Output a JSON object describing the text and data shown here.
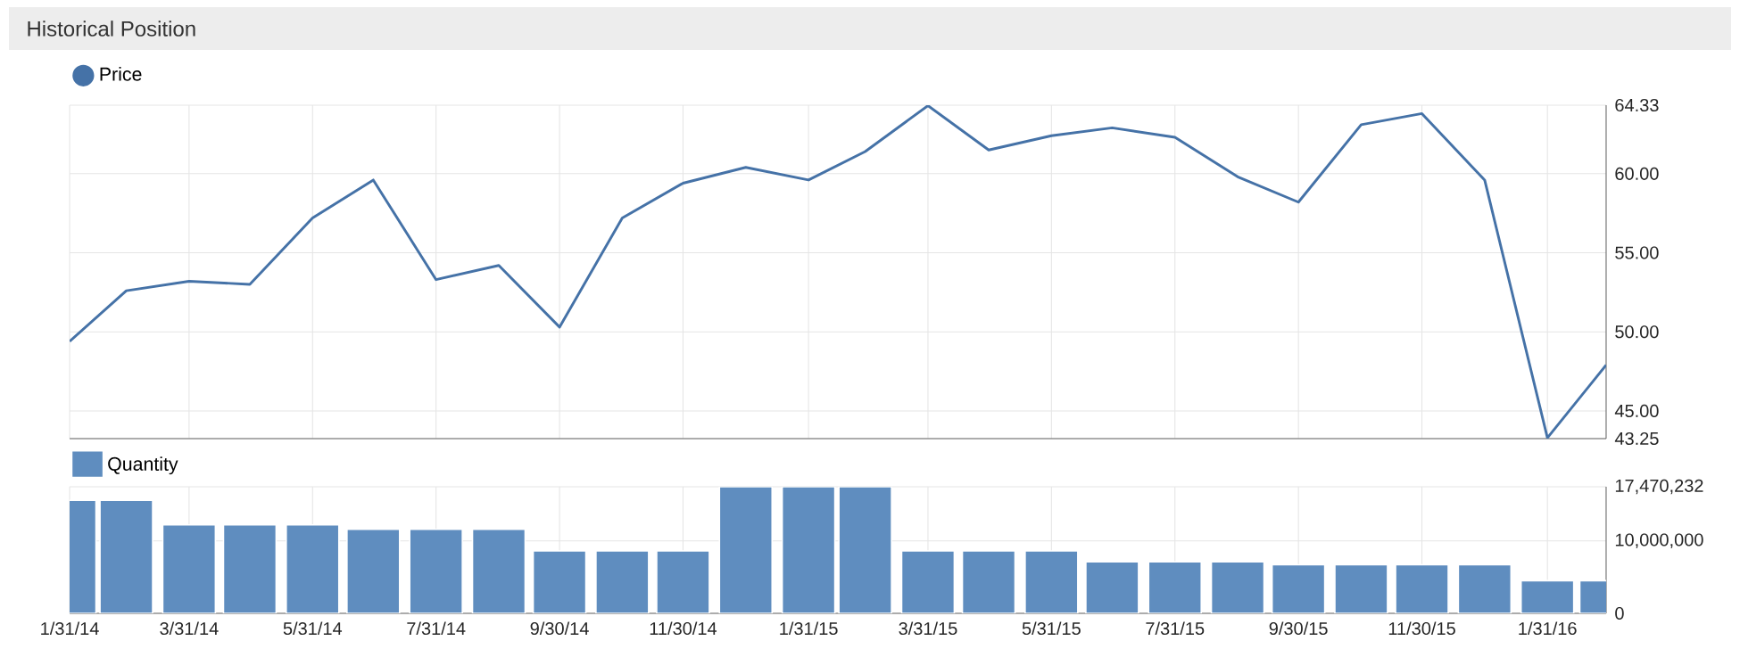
{
  "chart_data": [
    {
      "type": "line",
      "title": "Historical Position",
      "x": [
        "2014-01-31",
        "2014-02-28",
        "2014-03-31",
        "2014-04-30",
        "2014-05-31",
        "2014-06-30",
        "2014-07-31",
        "2014-08-31",
        "2014-09-30",
        "2014-10-31",
        "2014-11-30",
        "2014-12-31",
        "2015-01-31",
        "2015-02-28",
        "2015-03-31",
        "2015-04-30",
        "2015-05-31",
        "2015-06-30",
        "2015-07-31",
        "2015-08-31",
        "2015-09-30",
        "2015-10-31",
        "2015-11-30",
        "2015-12-31",
        "2016-01-31",
        "2016-02-29"
      ],
      "series": [
        {
          "name": "Price",
          "color": "#4572a7",
          "values": [
            49.4,
            52.6,
            53.2,
            53.0,
            57.2,
            59.6,
            53.3,
            54.2,
            50.3,
            57.2,
            59.4,
            60.4,
            59.6,
            61.4,
            64.3,
            61.5,
            62.4,
            62.9,
            62.3,
            59.8,
            58.2,
            63.1,
            63.8,
            59.6,
            43.3,
            47.9
          ]
        }
      ],
      "xlim": [
        "2014-01-31",
        "2016-02-29"
      ],
      "xticks": [
        {
          "value": "2014-01-31",
          "label": null
        },
        {
          "value": "2014-03-31",
          "label": null
        },
        {
          "value": "2014-05-31",
          "label": null
        },
        {
          "value": "2014-07-31",
          "label": null
        },
        {
          "value": "2014-09-30",
          "label": null
        },
        {
          "value": "2014-11-30",
          "label": null
        },
        {
          "value": "2015-01-31",
          "label": null
        },
        {
          "value": "2015-03-31",
          "label": null
        },
        {
          "value": "2015-05-31",
          "label": null
        },
        {
          "value": "2015-07-31",
          "label": null
        },
        {
          "value": "2015-09-30",
          "label": null
        },
        {
          "value": "2015-11-30",
          "label": null
        },
        {
          "value": "2016-01-31",
          "label": null
        }
      ],
      "ylim": [
        43.25,
        64.33
      ],
      "yticks": [
        43.25,
        {
          "value": 45,
          "label": "45.00"
        },
        {
          "value": 50,
          "label": "50.00"
        },
        {
          "value": 55,
          "label": "55.00"
        },
        {
          "value": 60,
          "label": "60.00"
        },
        64.33
      ],
      "grid": true,
      "legend": "top left",
      "tick_labels": "y"
    },
    {
      "type": "bar",
      "x": [
        "2014-01-31",
        "2014-02-28",
        "2014-03-31",
        "2014-04-30",
        "2014-05-31",
        "2014-06-30",
        "2014-07-31",
        "2014-08-31",
        "2014-09-30",
        "2014-10-31",
        "2014-11-30",
        "2014-12-31",
        "2015-01-31",
        "2015-02-28",
        "2015-03-31",
        "2015-04-30",
        "2015-05-31",
        "2015-06-30",
        "2015-07-31",
        "2015-08-31",
        "2015-09-30",
        "2015-10-31",
        "2015-11-30",
        "2015-12-31",
        "2016-01-31",
        "2016-02-29"
      ],
      "series": [
        {
          "name": "Quantity",
          "color": "#5f8dbf",
          "values": [
            15600000,
            15600000,
            12200000,
            12200000,
            12200000,
            11600000,
            11600000,
            11600000,
            8600000,
            8600000,
            8600000,
            17470232,
            17470232,
            17470232,
            8600000,
            8600000,
            8600000,
            7100000,
            7100000,
            7100000,
            6700000,
            6700000,
            6700000,
            6700000,
            4500000,
            4500000
          ]
        }
      ],
      "xlim": [
        "2014-01-31",
        "2016-02-29"
      ],
      "xticks": [
        {
          "value": "2014-01-31",
          "label": "1/31/14"
        },
        {
          "value": "2014-03-31",
          "label": "3/31/14"
        },
        {
          "value": "2014-05-31",
          "label": "5/31/14"
        },
        {
          "value": "2014-07-31",
          "label": "7/31/14"
        },
        {
          "value": "2014-09-30",
          "label": "9/30/14"
        },
        {
          "value": "2014-11-30",
          "label": "11/30/14"
        },
        {
          "value": "2015-01-31",
          "label": "1/31/15"
        },
        {
          "value": "2015-03-31",
          "label": "3/31/15"
        },
        {
          "value": "2015-05-31",
          "label": "5/31/15"
        },
        {
          "value": "2015-07-31",
          "label": "7/31/15"
        },
        {
          "value": "2015-09-30",
          "label": "9/30/15"
        },
        {
          "value": "2015-11-30",
          "label": "11/30/15"
        },
        {
          "value": "2016-01-31",
          "label": "1/31/16"
        }
      ],
      "ylim": [
        0,
        17470232
      ],
      "yticks": [
        0,
        {
          "value": 10000000,
          "label": "10,000,000"
        },
        {
          "value": 17470232,
          "label": "17,470,232"
        }
      ],
      "grid": true,
      "legend": "top left"
    }
  ]
}
